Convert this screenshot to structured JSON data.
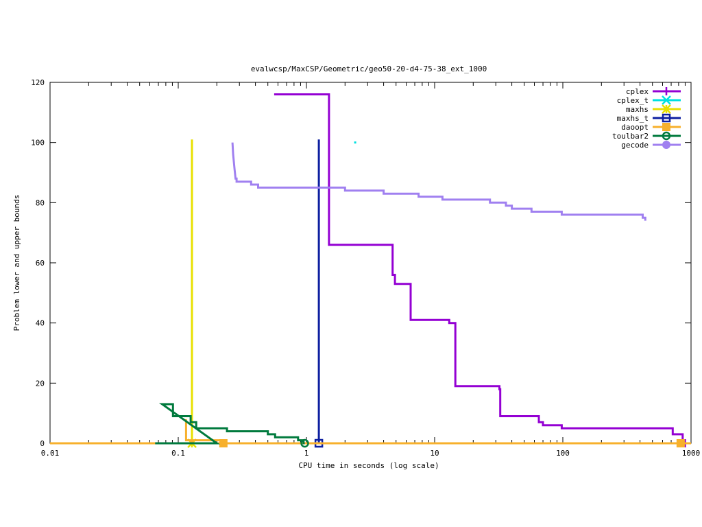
{
  "chart_data": {
    "type": "line",
    "title": "evalwcsp/MaxCSP/Geometric/geo50-20-d4-75-38_ext_1000",
    "xlabel": "CPU time in seconds (log scale)",
    "ylabel": "Problem lower and upper bounds",
    "xscale": "log",
    "xlim": [
      0.01,
      1000
    ],
    "ylim": [
      0,
      120
    ],
    "xticks": [
      0.01,
      0.1,
      1,
      10,
      100,
      1000
    ],
    "xtick_labels": [
      "0.01",
      "0.1",
      "1",
      "10",
      "100",
      "1000"
    ],
    "yticks": [
      0,
      20,
      40,
      60,
      80,
      100,
      120
    ],
    "ytick_labels": [
      "0",
      "20",
      "40",
      "60",
      "80",
      "100",
      "120"
    ],
    "grid": false,
    "legend_position": "top-right",
    "series": [
      {
        "name": "cplex",
        "color": "#9400d3",
        "marker": "plus",
        "points": [
          [
            0.56,
            116
          ],
          [
            1.5,
            116
          ],
          [
            1.5,
            66
          ],
          [
            4.7,
            66
          ],
          [
            4.7,
            56
          ],
          [
            4.9,
            56
          ],
          [
            4.9,
            53
          ],
          [
            6.5,
            53
          ],
          [
            6.5,
            41
          ],
          [
            13,
            41
          ],
          [
            13,
            40
          ],
          [
            14.5,
            40
          ],
          [
            14.5,
            19
          ],
          [
            32,
            19
          ],
          [
            32,
            18
          ],
          [
            32.5,
            18
          ],
          [
            32.5,
            9
          ],
          [
            65,
            9
          ],
          [
            65,
            7
          ],
          [
            70,
            7
          ],
          [
            70,
            6
          ],
          [
            98,
            6
          ],
          [
            98,
            5
          ],
          [
            720,
            5
          ],
          [
            720,
            3
          ],
          [
            860,
            3
          ],
          [
            860,
            1
          ],
          [
            900,
            0
          ]
        ],
        "markers": [
          [
            900,
            0
          ]
        ]
      },
      {
        "name": "cplex_t",
        "color": "#00e0e0",
        "marker": "x",
        "points": [
          [
            2.4,
            100
          ]
        ],
        "markers": []
      },
      {
        "name": "maxhs",
        "color": "#e8e000",
        "marker": "star",
        "points": [
          [
            0.128,
            101
          ],
          [
            0.128,
            0
          ]
        ],
        "markers": [
          [
            0.128,
            0
          ]
        ]
      },
      {
        "name": "maxhs_t",
        "color": "#0d1fa0",
        "marker": "square",
        "points": [
          [
            1.25,
            101
          ],
          [
            1.25,
            0
          ]
        ],
        "markers": [
          [
            1.25,
            0
          ]
        ]
      },
      {
        "name": "daoopt",
        "color": "#f7b02c",
        "marker": "filled-square",
        "points": [
          [
            0.115,
            8
          ],
          [
            0.115,
            1
          ],
          [
            0.126,
            1
          ],
          [
            0.126,
            0
          ],
          [
            0.13,
            0
          ],
          [
            0.13,
            1
          ],
          [
            0.225,
            1
          ],
          [
            0.225,
            0
          ],
          [
            0.01,
            0
          ],
          [
            1000,
            0
          ]
        ],
        "markers": [
          [
            0.225,
            0
          ],
          [
            830,
            0
          ]
        ]
      },
      {
        "name": "toulbar2",
        "color": "#007a3d",
        "marker": "circle",
        "points": [
          [
            0.066,
            0
          ],
          [
            0.2,
            0
          ],
          [
            0.075,
            13
          ],
          [
            0.091,
            13
          ],
          [
            0.091,
            9
          ],
          [
            0.125,
            9
          ],
          [
            0.125,
            7
          ],
          [
            0.138,
            7
          ],
          [
            0.138,
            5
          ],
          [
            0.24,
            5
          ],
          [
            0.24,
            4
          ],
          [
            0.5,
            4
          ],
          [
            0.5,
            3
          ],
          [
            0.57,
            3
          ],
          [
            0.57,
            2
          ],
          [
            0.86,
            2
          ],
          [
            0.86,
            1
          ],
          [
            0.95,
            1
          ],
          [
            0.95,
            0
          ],
          [
            0.97,
            0
          ]
        ],
        "markers": [
          [
            0.97,
            0
          ]
        ]
      },
      {
        "name": "gecode",
        "color": "#a080f0",
        "marker": "filled-circle",
        "points": [
          [
            0.265,
            100
          ],
          [
            0.268,
            96
          ],
          [
            0.275,
            91
          ],
          [
            0.28,
            88
          ],
          [
            0.285,
            88
          ],
          [
            0.285,
            87
          ],
          [
            0.37,
            87
          ],
          [
            0.37,
            86
          ],
          [
            0.42,
            86
          ],
          [
            0.42,
            85
          ],
          [
            2.0,
            85
          ],
          [
            2.0,
            84
          ],
          [
            4.0,
            84
          ],
          [
            4.0,
            83
          ],
          [
            7.5,
            83
          ],
          [
            7.5,
            82
          ],
          [
            11.5,
            82
          ],
          [
            11.5,
            81
          ],
          [
            27,
            81
          ],
          [
            27,
            80
          ],
          [
            36,
            80
          ],
          [
            36,
            79
          ],
          [
            40,
            79
          ],
          [
            40,
            78
          ],
          [
            57,
            78
          ],
          [
            57,
            77
          ],
          [
            98,
            77
          ],
          [
            98,
            76
          ],
          [
            420,
            76
          ],
          [
            420,
            75
          ],
          [
            440,
            75
          ],
          [
            440,
            74
          ]
        ],
        "markers": []
      }
    ]
  }
}
